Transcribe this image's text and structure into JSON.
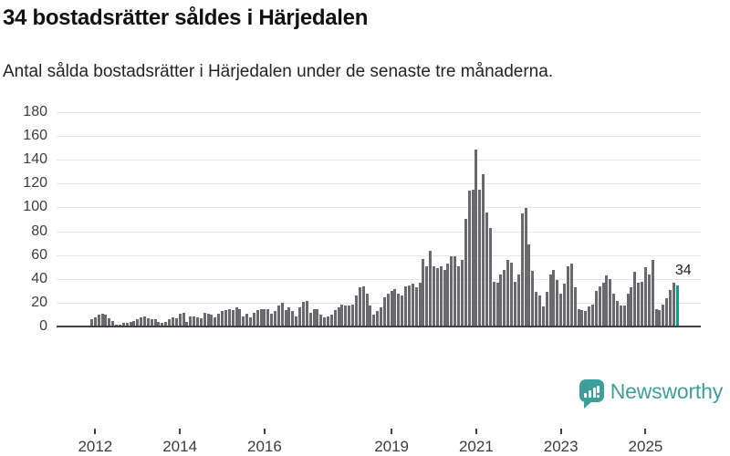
{
  "header": {
    "title": "34 bostadsrätter såldes i Härjedalen",
    "subtitle": "Antal sålda bostadsrätter i Härjedalen under de senaste tre månaderna."
  },
  "chart_data": {
    "type": "bar",
    "title": "34 bostadsrätter såldes i Härjedalen",
    "xlabel": "",
    "ylabel": "",
    "x_frequency": "monthly",
    "x_start": "2011-12",
    "x_end": "2025-10",
    "ylim": [
      0,
      180
    ],
    "y_ticks": [
      0,
      20,
      40,
      60,
      80,
      100,
      120,
      140,
      160,
      180
    ],
    "x_tick_years": [
      2012,
      2014,
      2016,
      2019,
      2021,
      2023,
      2025
    ],
    "x_tick_labels": [
      "2012",
      "2014",
      "2016",
      "2019",
      "2021",
      "2023",
      "2025"
    ],
    "grid": true,
    "legend": false,
    "bar_color": "#6a6a6e",
    "highlight_color": "#00a2a2",
    "highlight_last": true,
    "last_value_label": "34",
    "values": [
      5,
      7,
      9,
      10,
      9,
      6,
      4,
      1,
      1,
      2,
      2,
      3,
      4,
      5,
      7,
      8,
      6,
      5,
      5,
      3,
      2,
      3,
      5,
      7,
      6,
      10,
      11,
      3,
      8,
      8,
      7,
      6,
      11,
      10,
      9,
      7,
      10,
      12,
      13,
      14,
      13,
      15,
      14,
      8,
      10,
      7,
      11,
      13,
      14,
      14,
      14,
      10,
      12,
      17,
      19,
      13,
      15,
      12,
      8,
      15,
      20,
      21,
      11,
      14,
      14,
      9,
      7,
      8,
      9,
      13,
      15,
      18,
      17,
      17,
      18,
      25,
      32,
      33,
      27,
      17,
      9,
      12,
      15,
      24,
      27,
      29,
      31,
      27,
      25,
      33,
      34,
      35,
      32,
      36,
      56,
      50,
      63,
      50,
      48,
      50,
      47,
      52,
      58,
      58,
      50,
      55,
      90,
      113,
      114,
      148,
      114,
      127,
      95,
      82,
      37,
      36,
      43,
      47,
      55,
      53,
      37,
      43,
      94,
      99,
      68,
      46,
      28,
      25,
      16,
      28,
      43,
      47,
      38,
      27,
      35,
      50,
      52,
      32,
      14,
      13,
      12,
      16,
      18,
      29,
      33,
      36,
      42,
      39,
      27,
      21,
      17,
      17,
      27,
      32,
      45,
      36,
      37,
      49,
      43,
      55,
      14,
      13,
      18,
      23,
      30,
      36,
      34
    ]
  },
  "footer": {
    "brand": "Newsworthy",
    "brand_color": "#3d9f9b",
    "logo_icon": "bar-chart-speech-bubble-icon"
  }
}
